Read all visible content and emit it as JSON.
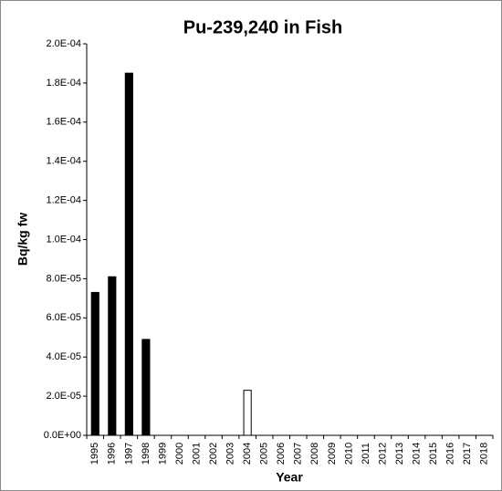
{
  "chart_data": {
    "type": "bar",
    "title": "Pu-239,240 in Fish",
    "x_label": "Year",
    "y_label": "Bq/kg fw",
    "categories": [
      "1995",
      "1996",
      "1997",
      "1998",
      "1999",
      "2000",
      "2001",
      "2002",
      "2003",
      "2004",
      "2005",
      "2006",
      "2007",
      "2008",
      "2009",
      "2010",
      "2011",
      "2012",
      "2013",
      "2014",
      "2015",
      "2016",
      "2017",
      "2018"
    ],
    "values": [
      7.3e-05,
      8.1e-05,
      0.000185,
      4.9e-05,
      null,
      null,
      null,
      null,
      null,
      2.3e-05,
      null,
      null,
      null,
      null,
      null,
      null,
      null,
      null,
      null,
      null,
      null,
      null,
      null,
      null
    ],
    "colors": [
      "#000000",
      "#000000",
      "#000000",
      "#000000",
      "#000000",
      "#000000",
      "#000000",
      "#000000",
      "#000000",
      "#ffffff",
      "#000000",
      "#000000",
      "#000000",
      "#000000",
      "#000000",
      "#000000",
      "#000000",
      "#000000",
      "#000000",
      "#000000",
      "#000000",
      "#000000",
      "#000000",
      "#000000"
    ],
    "edgecolor": "#000000",
    "ylim": [
      0,
      0.0002
    ],
    "yticks": [
      {
        "value": 0,
        "label": "0.0E+00"
      },
      {
        "value": 2e-05,
        "label": "2.0E-05"
      },
      {
        "value": 4e-05,
        "label": "4.0E-05"
      },
      {
        "value": 6e-05,
        "label": "6.0E-05"
      },
      {
        "value": 8e-05,
        "label": "8.0E-05"
      },
      {
        "value": 0.0001,
        "label": "1.0E-04"
      },
      {
        "value": 0.00012,
        "label": "1.2E-04"
      },
      {
        "value": 0.00014,
        "label": "1.4E-04"
      },
      {
        "value": 0.00016,
        "label": "1.6E-04"
      },
      {
        "value": 0.00018,
        "label": "1.8E-04"
      },
      {
        "value": 0.0002,
        "label": "2.0E-04"
      }
    ],
    "grid": false
  }
}
